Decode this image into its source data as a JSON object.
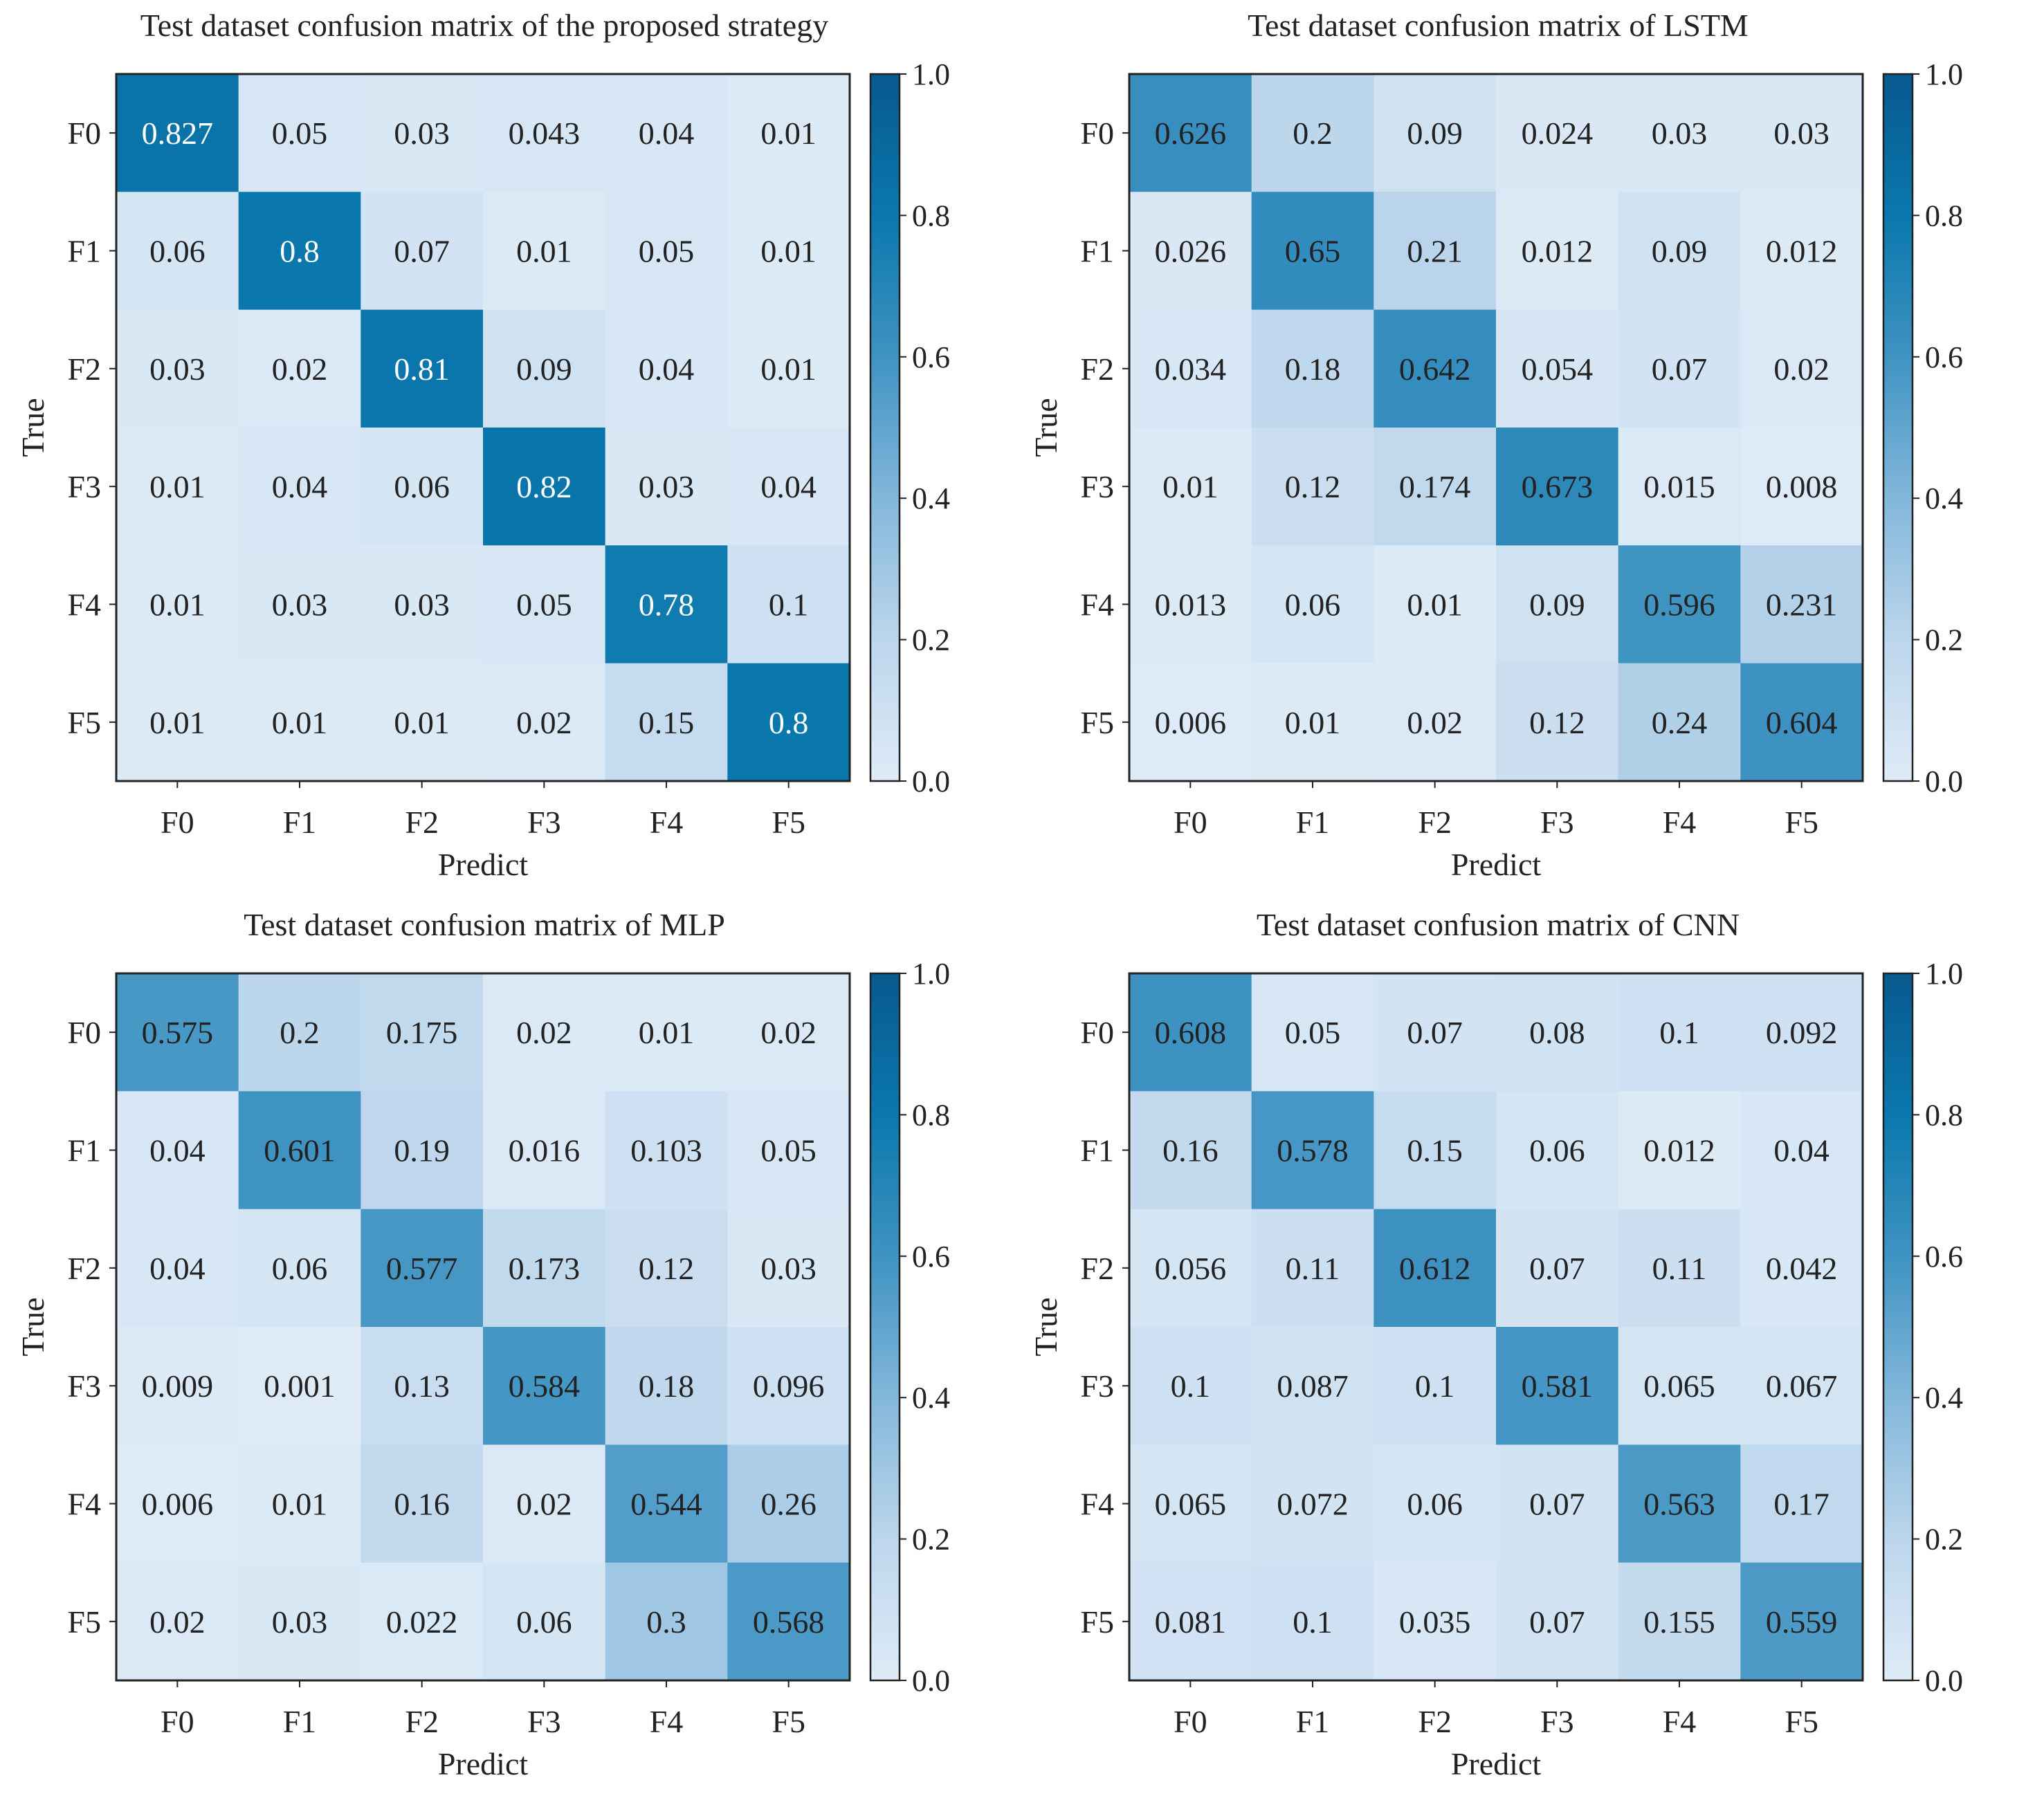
{
  "colors": {
    "low": "#deebf7",
    "mid": "#4f9ac8",
    "high": "#08598f",
    "dark_text": "#222222",
    "light_text": "#ffffff"
  },
  "chart_data": [
    {
      "type": "heatmap",
      "title": "Test dataset confusion matrix of the proposed strategy",
      "xlabel": "Predict",
      "ylabel": "True",
      "x_categories": [
        "F0",
        "F1",
        "F2",
        "F3",
        "F4",
        "F5"
      ],
      "y_categories": [
        "F0",
        "F1",
        "F2",
        "F3",
        "F4",
        "F5"
      ],
      "values": [
        [
          "0.827",
          "0.05",
          "0.03",
          "0.043",
          "0.04",
          "0.01"
        ],
        [
          "0.06",
          "0.8",
          "0.07",
          "0.01",
          "0.05",
          "0.01"
        ],
        [
          "0.03",
          "0.02",
          "0.81",
          "0.09",
          "0.04",
          "0.01"
        ],
        [
          "0.01",
          "0.04",
          "0.06",
          "0.82",
          "0.03",
          "0.04"
        ],
        [
          "0.01",
          "0.03",
          "0.03",
          "0.05",
          "0.78",
          "0.1"
        ],
        [
          "0.01",
          "0.01",
          "0.01",
          "0.02",
          "0.15",
          "0.8"
        ]
      ],
      "colorbar": {
        "range": [
          0.0,
          1.0
        ],
        "ticks": [
          "0.0",
          "0.2",
          "0.4",
          "0.6",
          "0.8",
          "1.0"
        ]
      }
    },
    {
      "type": "heatmap",
      "title": "Test dataset confusion matrix of LSTM",
      "xlabel": "Predict",
      "ylabel": "True",
      "x_categories": [
        "F0",
        "F1",
        "F2",
        "F3",
        "F4",
        "F5"
      ],
      "y_categories": [
        "F0",
        "F1",
        "F2",
        "F3",
        "F4",
        "F5"
      ],
      "values": [
        [
          "0.626",
          "0.2",
          "0.09",
          "0.024",
          "0.03",
          "0.03"
        ],
        [
          "0.026",
          "0.65",
          "0.21",
          "0.012",
          "0.09",
          "0.012"
        ],
        [
          "0.034",
          "0.18",
          "0.642",
          "0.054",
          "0.07",
          "0.02"
        ],
        [
          "0.01",
          "0.12",
          "0.174",
          "0.673",
          "0.015",
          "0.008"
        ],
        [
          "0.013",
          "0.06",
          "0.01",
          "0.09",
          "0.596",
          "0.231"
        ],
        [
          "0.006",
          "0.01",
          "0.02",
          "0.12",
          "0.24",
          "0.604"
        ]
      ],
      "colorbar": {
        "range": [
          0.0,
          1.0
        ],
        "ticks": [
          "0.0",
          "0.2",
          "0.4",
          "0.6",
          "0.8",
          "1.0"
        ]
      }
    },
    {
      "type": "heatmap",
      "title": "Test dataset confusion matrix of MLP",
      "xlabel": "Predict",
      "ylabel": "True",
      "x_categories": [
        "F0",
        "F1",
        "F2",
        "F3",
        "F4",
        "F5"
      ],
      "y_categories": [
        "F0",
        "F1",
        "F2",
        "F3",
        "F4",
        "F5"
      ],
      "values": [
        [
          "0.575",
          "0.2",
          "0.175",
          "0.02",
          "0.01",
          "0.02"
        ],
        [
          "0.04",
          "0.601",
          "0.19",
          "0.016",
          "0.103",
          "0.05"
        ],
        [
          "0.04",
          "0.06",
          "0.577",
          "0.173",
          "0.12",
          "0.03"
        ],
        [
          "0.009",
          "0.001",
          "0.13",
          "0.584",
          "0.18",
          "0.096"
        ],
        [
          "0.006",
          "0.01",
          "0.16",
          "0.02",
          "0.544",
          "0.26"
        ],
        [
          "0.02",
          "0.03",
          "0.022",
          "0.06",
          "0.3",
          "0.568"
        ]
      ],
      "colorbar": {
        "range": [
          0.0,
          1.0
        ],
        "ticks": [
          "0.0",
          "0.2",
          "0.4",
          "0.6",
          "0.8",
          "1.0"
        ]
      }
    },
    {
      "type": "heatmap",
      "title": "Test dataset confusion matrix of CNN",
      "xlabel": "Predict",
      "ylabel": "True",
      "x_categories": [
        "F0",
        "F1",
        "F2",
        "F3",
        "F4",
        "F5"
      ],
      "y_categories": [
        "F0",
        "F1",
        "F2",
        "F3",
        "F4",
        "F5"
      ],
      "values": [
        [
          "0.608",
          "0.05",
          "0.07",
          "0.08",
          "0.1",
          "0.092"
        ],
        [
          "0.16",
          "0.578",
          "0.15",
          "0.06",
          "0.012",
          "0.04"
        ],
        [
          "0.056",
          "0.11",
          "0.612",
          "0.07",
          "0.11",
          "0.042"
        ],
        [
          "0.1",
          "0.087",
          "0.1",
          "0.581",
          "0.065",
          "0.067"
        ],
        [
          "0.065",
          "0.072",
          "0.06",
          "0.07",
          "0.563",
          "0.17"
        ],
        [
          "0.081",
          "0.1",
          "0.035",
          "0.07",
          "0.155",
          "0.559"
        ]
      ],
      "colorbar": {
        "range": [
          0.0,
          1.0
        ],
        "ticks": [
          "0.0",
          "0.2",
          "0.4",
          "0.6",
          "0.8",
          "1.0"
        ]
      }
    }
  ]
}
